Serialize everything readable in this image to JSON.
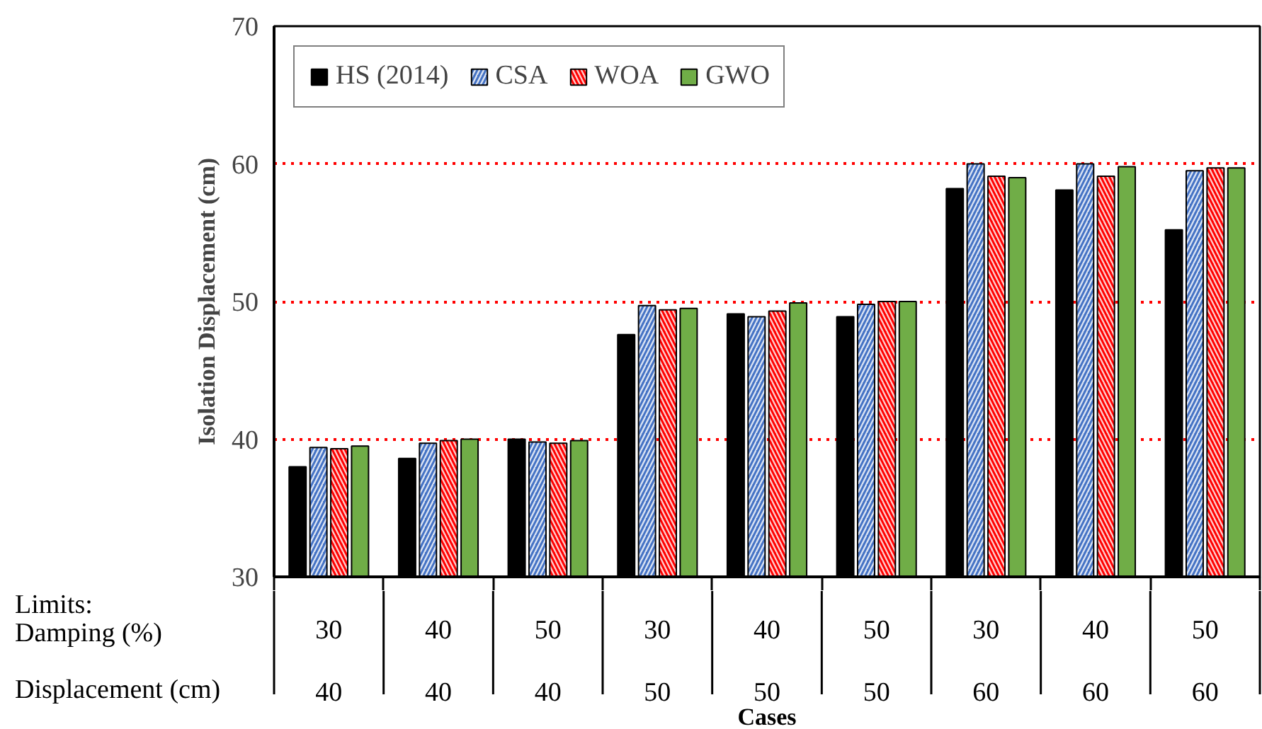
{
  "chart_data": {
    "type": "bar",
    "ylabel": "Isolation Displacement (cm)",
    "xlabel": "Cases",
    "categories": [
      "30\n40",
      "40\n40",
      "50\n40",
      "30\n50",
      "40\n50",
      "50\n50",
      "30\n60",
      "40\n60",
      "50\n60"
    ],
    "series": [
      {
        "name": "HS (2014)",
        "color": "#000000",
        "values": [
          38.0,
          38.6,
          40.0,
          47.6,
          49.1,
          48.9,
          58.2,
          58.1,
          55.2
        ]
      },
      {
        "name": "CSA",
        "color": "#4472c4",
        "values": [
          39.4,
          39.7,
          39.8,
          49.7,
          48.9,
          49.8,
          60.0,
          60.0,
          59.5
        ]
      },
      {
        "name": "WOA",
        "color": "#ff0000",
        "values": [
          39.3,
          39.9,
          39.7,
          49.4,
          49.3,
          50.0,
          59.1,
          59.1,
          59.7
        ]
      },
      {
        "name": "GWO",
        "color": "#70ad47",
        "values": [
          39.5,
          40.0,
          39.9,
          49.5,
          49.9,
          50.0,
          59.0,
          59.8,
          59.7
        ]
      }
    ],
    "annotations": [
      "Limits:",
      "Damping (%)",
      "Displacement (cm)"
    ],
    "ylim": [
      30,
      70
    ],
    "yticks": [
      30,
      40,
      50,
      60,
      70
    ],
    "grid": "y",
    "legend": "top left"
  }
}
